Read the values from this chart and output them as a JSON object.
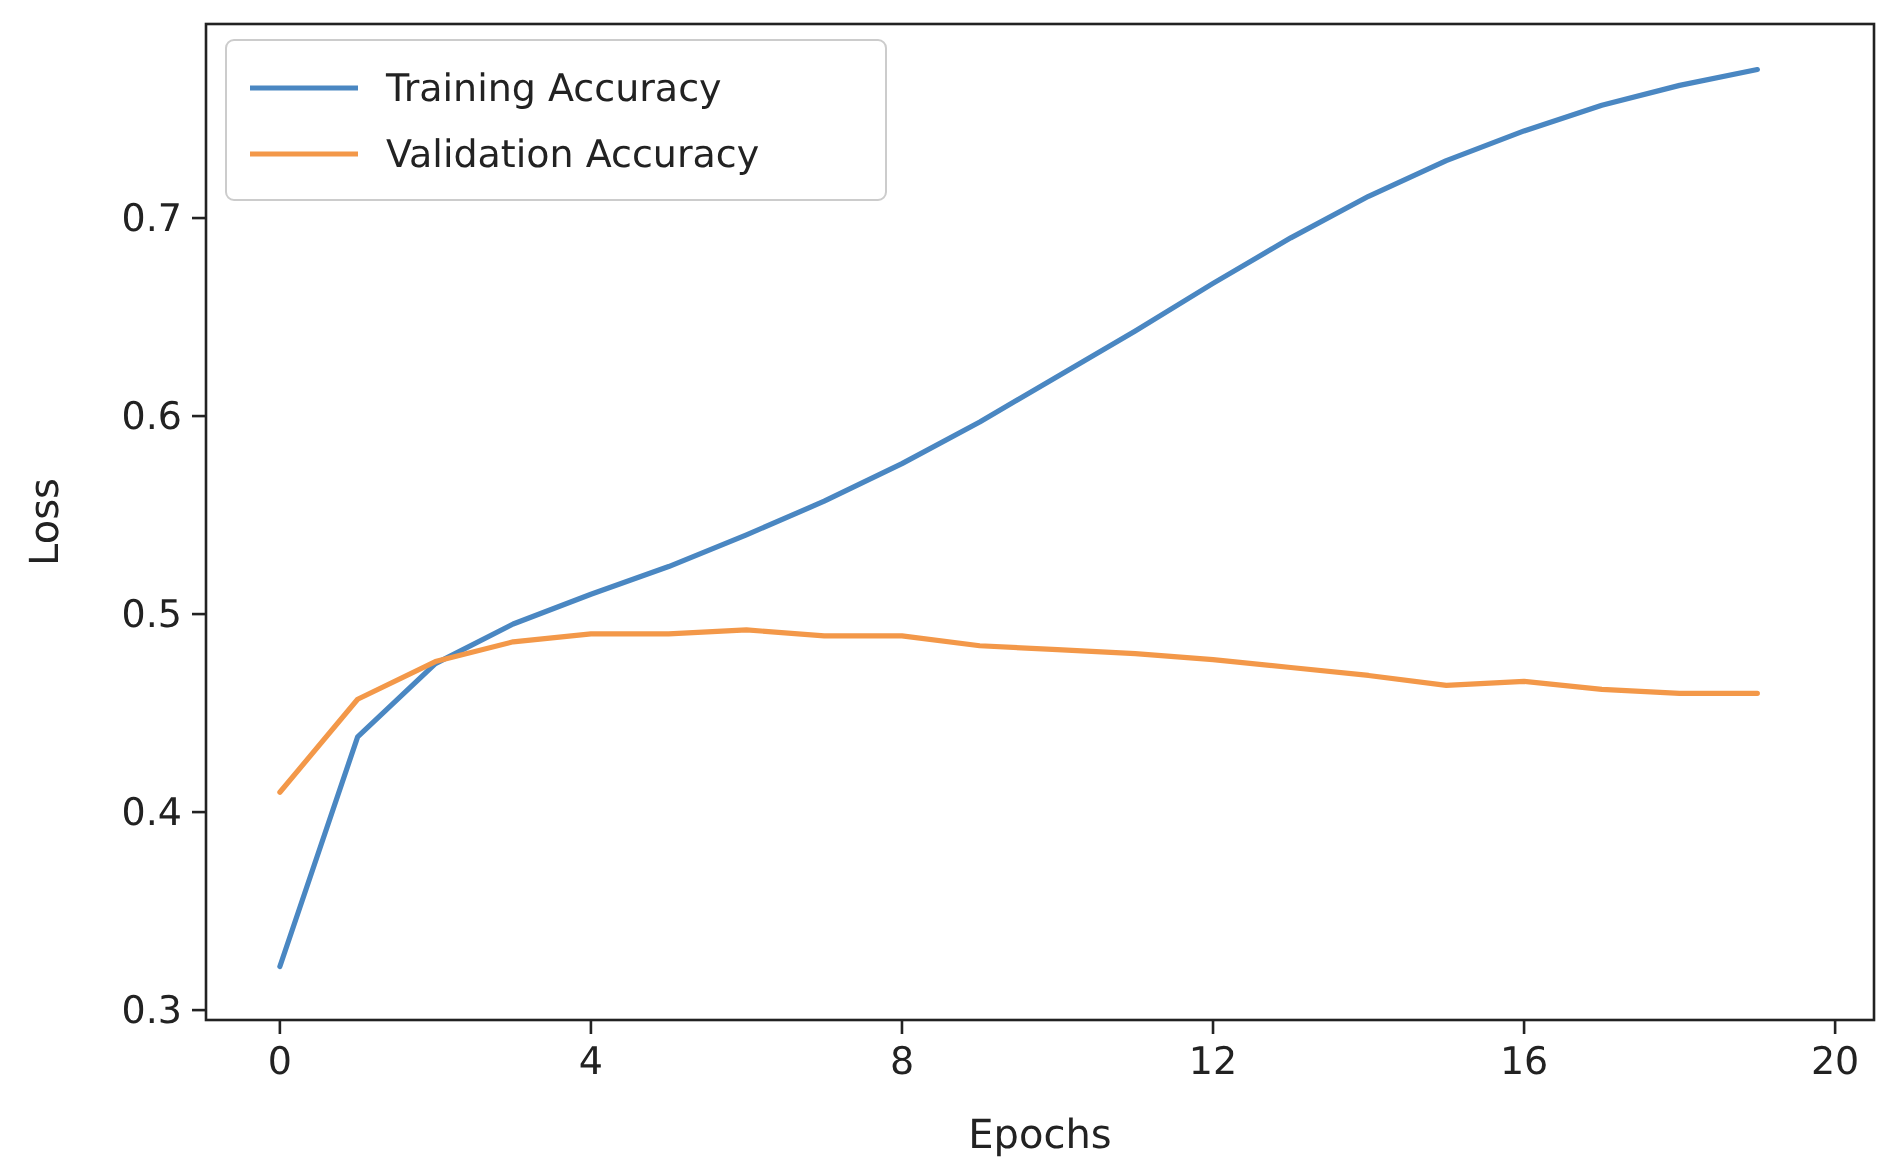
{
  "chart_data": {
    "type": "line",
    "xlabel": "Epochs",
    "ylabel": "Loss",
    "x": [
      0,
      1,
      2,
      3,
      4,
      5,
      6,
      7,
      8,
      9,
      10,
      11,
      12,
      13,
      14,
      15,
      16,
      17,
      18,
      19
    ],
    "series": [
      {
        "name": "Training Accuracy",
        "color": "#4a87c2",
        "values": [
          0.322,
          0.438,
          0.475,
          0.495,
          0.51,
          0.524,
          0.54,
          0.557,
          0.576,
          0.597,
          0.62,
          0.643,
          0.667,
          0.69,
          0.711,
          0.729,
          0.744,
          0.757,
          0.767,
          0.775
        ]
      },
      {
        "name": "Validation Accuracy",
        "color": "#f39849",
        "values": [
          0.41,
          0.457,
          0.476,
          0.486,
          0.49,
          0.49,
          0.492,
          0.489,
          0.489,
          0.484,
          0.482,
          0.48,
          0.477,
          0.473,
          0.469,
          0.464,
          0.466,
          0.462,
          0.46,
          0.46
        ]
      }
    ],
    "xlim": [
      -0.95,
      20.5
    ],
    "xticks": [
      0,
      4,
      8,
      12,
      16,
      20
    ],
    "ylim": [
      0.295,
      0.798
    ],
    "yticks": [
      0.3,
      0.4,
      0.5,
      0.6,
      0.7
    ],
    "legend": "top left",
    "grid": false
  }
}
